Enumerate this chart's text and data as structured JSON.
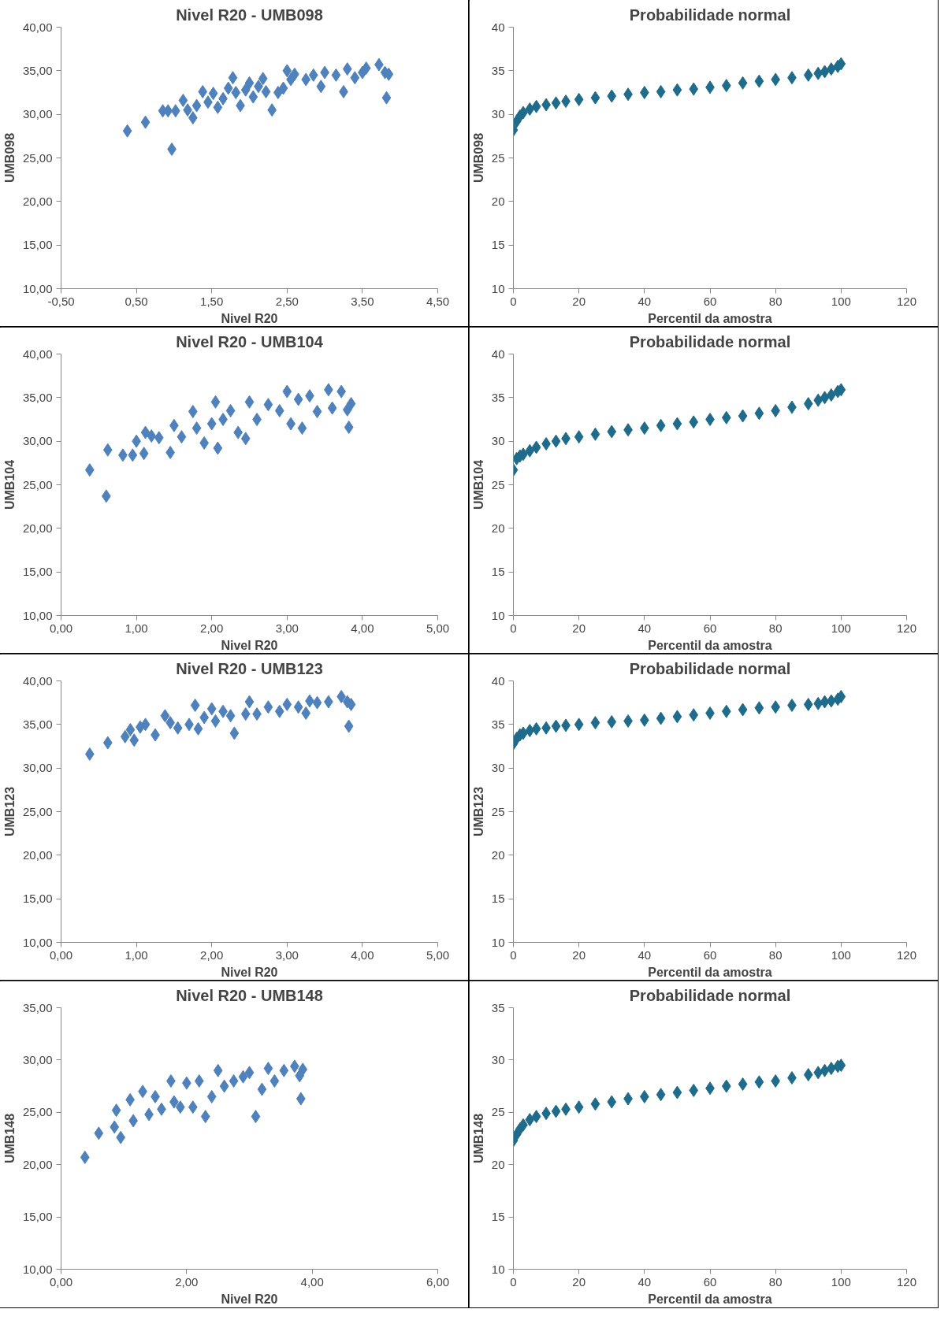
{
  "chart_data": [
    {
      "type": "scatter",
      "title": "Nivel R20 - UMB098",
      "xlabel": "Nivel R20",
      "ylabel": "UMB098",
      "color": "#4f81bd",
      "marker": "diamond",
      "x": [
        0.38,
        0.62,
        0.85,
        0.92,
        0.97,
        1.02,
        1.12,
        1.18,
        1.25,
        1.3,
        1.38,
        1.45,
        1.52,
        1.58,
        1.65,
        1.72,
        1.78,
        1.82,
        1.88,
        1.95,
        2.0,
        2.05,
        2.12,
        2.18,
        2.22,
        2.3,
        2.38,
        2.45,
        2.5,
        2.55,
        2.6,
        2.75,
        2.85,
        2.95,
        3.0,
        3.15,
        3.25,
        3.3,
        3.4,
        3.5,
        3.55,
        3.72,
        3.8,
        3.85,
        3.82
      ],
      "values": [
        28.1,
        29.1,
        30.4,
        30.4,
        26.0,
        30.4,
        31.6,
        30.5,
        29.6,
        31.0,
        32.6,
        31.4,
        32.4,
        30.8,
        31.8,
        33.0,
        34.2,
        32.5,
        31.0,
        32.8,
        33.6,
        32.0,
        33.2,
        34.1,
        32.6,
        30.5,
        32.5,
        33.0,
        35.0,
        34.0,
        34.6,
        34.0,
        34.5,
        33.2,
        34.8,
        34.5,
        32.6,
        35.2,
        34.2,
        34.8,
        35.3,
        35.7,
        34.8,
        34.6,
        31.9
      ],
      "xlim": [
        -0.5,
        4.5
      ],
      "ylim": [
        10,
        40
      ],
      "xticks": [
        {
          "value": -0.5,
          "label": "-0,50"
        },
        {
          "value": 0.5,
          "label": "0,50"
        },
        {
          "value": 1.5,
          "label": "1,50"
        },
        {
          "value": 2.5,
          "label": "2,50"
        },
        {
          "value": 3.5,
          "label": "3,50"
        },
        {
          "value": 4.5,
          "label": "4,50"
        }
      ],
      "yticks": [
        {
          "value": 10,
          "label": "10,00"
        },
        {
          "value": 15,
          "label": "15,00"
        },
        {
          "value": 20,
          "label": "20,00"
        },
        {
          "value": 25,
          "label": "25,00"
        },
        {
          "value": 30,
          "label": "30,00"
        },
        {
          "value": 35,
          "label": "35,00"
        },
        {
          "value": 40,
          "label": "40,00"
        }
      ]
    },
    {
      "type": "scatter",
      "title": "Probabilidade normal",
      "xlabel": "Percentil da amostra",
      "ylabel": "UMB098",
      "color": "#1f6b8c",
      "marker": "diamond",
      "x": [
        0,
        1,
        2,
        3,
        5,
        7,
        10,
        13,
        16,
        20,
        25,
        30,
        35,
        40,
        45,
        50,
        55,
        60,
        65,
        70,
        75,
        80,
        85,
        90,
        93,
        95,
        97,
        99,
        100
      ],
      "values": [
        28.2,
        29.2,
        29.8,
        30.2,
        30.6,
        30.9,
        31.1,
        31.3,
        31.5,
        31.7,
        31.9,
        32.1,
        32.3,
        32.5,
        32.6,
        32.8,
        32.9,
        33.1,
        33.3,
        33.6,
        33.8,
        34.0,
        34.2,
        34.5,
        34.7,
        34.9,
        35.2,
        35.5,
        35.8
      ],
      "xlim": [
        0,
        120
      ],
      "ylim": [
        10,
        40
      ],
      "xticks": [
        0,
        20,
        40,
        60,
        80,
        100,
        120
      ],
      "yticks": [
        10,
        15,
        20,
        25,
        30,
        35,
        40
      ]
    },
    {
      "type": "scatter",
      "title": "Nivel R20 - UMB104",
      "xlabel": "Nivel R20",
      "ylabel": "UMB104",
      "color": "#4f81bd",
      "marker": "diamond",
      "x": [
        0.38,
        0.6,
        0.62,
        0.82,
        0.95,
        1.0,
        1.1,
        1.12,
        1.2,
        1.3,
        1.45,
        1.5,
        1.6,
        1.75,
        1.8,
        1.9,
        2.0,
        2.05,
        2.08,
        2.15,
        2.25,
        2.35,
        2.45,
        2.5,
        2.6,
        2.75,
        2.9,
        3.0,
        3.05,
        3.15,
        3.2,
        3.3,
        3.4,
        3.55,
        3.6,
        3.72,
        3.8,
        3.85,
        3.82
      ],
      "values": [
        26.7,
        23.7,
        29.0,
        28.4,
        28.4,
        30.0,
        28.6,
        31.0,
        30.6,
        30.4,
        28.7,
        31.8,
        30.5,
        33.4,
        31.5,
        29.8,
        32.0,
        34.5,
        29.2,
        32.5,
        33.5,
        31.0,
        30.3,
        34.5,
        32.5,
        34.2,
        33.5,
        35.7,
        32.0,
        34.8,
        31.5,
        35.2,
        33.4,
        35.9,
        33.8,
        35.7,
        33.6,
        34.3,
        31.6
      ],
      "xlim": [
        0,
        5
      ],
      "ylim": [
        10,
        40
      ],
      "xticks": [
        {
          "value": 0,
          "label": "0,00"
        },
        {
          "value": 1,
          "label": "1,00"
        },
        {
          "value": 2,
          "label": "2,00"
        },
        {
          "value": 3,
          "label": "3,00"
        },
        {
          "value": 4,
          "label": "4,00"
        },
        {
          "value": 5,
          "label": "5,00"
        }
      ],
      "yticks": [
        {
          "value": 10,
          "label": "10,00"
        },
        {
          "value": 15,
          "label": "15,00"
        },
        {
          "value": 20,
          "label": "20,00"
        },
        {
          "value": 25,
          "label": "25,00"
        },
        {
          "value": 30,
          "label": "30,00"
        },
        {
          "value": 35,
          "label": "35,00"
        },
        {
          "value": 40,
          "label": "40,00"
        }
      ]
    },
    {
      "type": "scatter",
      "title": "Probabilidade normal",
      "xlabel": "Percentil da amostra",
      "ylabel": "UMB104",
      "color": "#1f6b8c",
      "marker": "diamond",
      "x": [
        0,
        1,
        2,
        3,
        5,
        7,
        10,
        13,
        16,
        20,
        25,
        30,
        35,
        40,
        45,
        50,
        55,
        60,
        65,
        70,
        75,
        80,
        85,
        90,
        93,
        95,
        97,
        99,
        100
      ],
      "values": [
        26.7,
        28.0,
        28.3,
        28.5,
        28.9,
        29.3,
        29.7,
        30.0,
        30.3,
        30.5,
        30.8,
        31.1,
        31.3,
        31.5,
        31.8,
        32.0,
        32.2,
        32.5,
        32.7,
        32.9,
        33.2,
        33.5,
        33.9,
        34.3,
        34.7,
        35.0,
        35.3,
        35.7,
        35.9
      ],
      "xlim": [
        0,
        120
      ],
      "ylim": [
        10,
        40
      ],
      "xticks": [
        0,
        20,
        40,
        60,
        80,
        100,
        120
      ],
      "yticks": [
        10,
        15,
        20,
        25,
        30,
        35,
        40
      ]
    },
    {
      "type": "scatter",
      "title": "Nivel R20 - UMB123",
      "xlabel": "Nivel R20",
      "ylabel": "UMB123",
      "color": "#4f81bd",
      "marker": "diamond",
      "x": [
        0.38,
        0.62,
        0.85,
        0.92,
        0.97,
        1.05,
        1.12,
        1.25,
        1.38,
        1.45,
        1.55,
        1.7,
        1.78,
        1.82,
        1.9,
        2.0,
        2.05,
        2.15,
        2.25,
        2.3,
        2.45,
        2.5,
        2.6,
        2.75,
        2.9,
        3.0,
        3.15,
        3.25,
        3.3,
        3.4,
        3.55,
        3.72,
        3.8,
        3.85,
        3.82
      ],
      "values": [
        31.6,
        32.9,
        33.6,
        34.4,
        33.2,
        34.7,
        35.0,
        33.8,
        36.0,
        35.2,
        34.6,
        35.0,
        37.2,
        34.5,
        35.8,
        36.8,
        35.4,
        36.5,
        36.0,
        34.0,
        36.2,
        37.6,
        36.2,
        37.0,
        36.5,
        37.3,
        37.0,
        36.3,
        37.7,
        37.5,
        37.6,
        38.2,
        37.6,
        37.3,
        34.8
      ],
      "xlim": [
        0,
        5
      ],
      "ylim": [
        10,
        40
      ],
      "xticks": [
        {
          "value": 0,
          "label": "0,00"
        },
        {
          "value": 1,
          "label": "1,00"
        },
        {
          "value": 2,
          "label": "2,00"
        },
        {
          "value": 3,
          "label": "3,00"
        },
        {
          "value": 4,
          "label": "4,00"
        },
        {
          "value": 5,
          "label": "5,00"
        }
      ],
      "yticks": [
        {
          "value": 10,
          "label": "10,00"
        },
        {
          "value": 15,
          "label": "15,00"
        },
        {
          "value": 20,
          "label": "20,00"
        },
        {
          "value": 25,
          "label": "25,00"
        },
        {
          "value": 30,
          "label": "30,00"
        },
        {
          "value": 35,
          "label": "35,00"
        },
        {
          "value": 40,
          "label": "40,00"
        }
      ]
    },
    {
      "type": "scatter",
      "title": "Probabilidade normal",
      "xlabel": "Percentil da amostra",
      "ylabel": "UMB123",
      "color": "#1f6b8c",
      "marker": "diamond",
      "x": [
        0,
        1,
        2,
        3,
        5,
        7,
        10,
        13,
        16,
        20,
        25,
        30,
        35,
        40,
        45,
        50,
        55,
        60,
        65,
        70,
        75,
        80,
        85,
        90,
        93,
        95,
        97,
        99,
        100
      ],
      "values": [
        32.8,
        33.4,
        33.8,
        34.0,
        34.3,
        34.5,
        34.6,
        34.8,
        34.9,
        35.0,
        35.2,
        35.3,
        35.4,
        35.5,
        35.7,
        35.9,
        36.1,
        36.3,
        36.5,
        36.7,
        36.9,
        37.0,
        37.2,
        37.3,
        37.4,
        37.6,
        37.7,
        37.9,
        38.2
      ],
      "xlim": [
        0,
        120
      ],
      "ylim": [
        10,
        40
      ],
      "xticks": [
        0,
        20,
        40,
        60,
        80,
        100,
        120
      ],
      "yticks": [
        10,
        15,
        20,
        25,
        30,
        35,
        40
      ]
    },
    {
      "type": "scatter",
      "title": "Nivel R20 - UMB148",
      "xlabel": "Nivel R20",
      "ylabel": "UMB148",
      "color": "#4f81bd",
      "marker": "diamond",
      "x": [
        0.38,
        0.6,
        0.85,
        0.88,
        0.95,
        1.1,
        1.15,
        1.3,
        1.4,
        1.5,
        1.6,
        1.75,
        1.8,
        1.9,
        2.0,
        2.1,
        2.2,
        2.3,
        2.4,
        2.5,
        2.6,
        2.75,
        2.9,
        3.0,
        3.1,
        3.2,
        3.3,
        3.4,
        3.55,
        3.72,
        3.8,
        3.85,
        3.82
      ],
      "values": [
        20.7,
        23.0,
        23.6,
        25.2,
        22.6,
        26.2,
        24.2,
        27.0,
        24.8,
        26.5,
        25.3,
        28.0,
        26.0,
        25.5,
        27.8,
        25.5,
        28.0,
        24.6,
        26.5,
        29.0,
        27.5,
        28.0,
        28.4,
        28.8,
        24.6,
        27.2,
        29.2,
        28.0,
        29.0,
        29.4,
        28.5,
        29.1,
        26.3
      ],
      "xlim": [
        0,
        6
      ],
      "ylim": [
        10,
        35
      ],
      "xticks": [
        {
          "value": 0,
          "label": "0,00"
        },
        {
          "value": 2,
          "label": "2,00"
        },
        {
          "value": 4,
          "label": "4,00"
        },
        {
          "value": 6,
          "label": "6,00"
        }
      ],
      "yticks": [
        {
          "value": 10,
          "label": "10,00"
        },
        {
          "value": 15,
          "label": "15,00"
        },
        {
          "value": 20,
          "label": "20,00"
        },
        {
          "value": 25,
          "label": "25,00"
        },
        {
          "value": 30,
          "label": "30,00"
        },
        {
          "value": 35,
          "label": "35,00"
        }
      ]
    },
    {
      "type": "scatter",
      "title": "Probabilidade normal",
      "xlabel": "Percentil da amostra",
      "ylabel": "UMB148",
      "color": "#1f6b8c",
      "marker": "diamond",
      "x": [
        0,
        1,
        2,
        3,
        5,
        7,
        10,
        13,
        16,
        20,
        25,
        30,
        35,
        40,
        45,
        50,
        55,
        60,
        65,
        70,
        75,
        80,
        85,
        90,
        93,
        95,
        97,
        99,
        100
      ],
      "values": [
        22.3,
        22.9,
        23.4,
        23.8,
        24.3,
        24.6,
        24.9,
        25.1,
        25.3,
        25.5,
        25.8,
        26.0,
        26.3,
        26.5,
        26.7,
        26.9,
        27.1,
        27.3,
        27.5,
        27.7,
        27.9,
        28.0,
        28.3,
        28.6,
        28.8,
        29.0,
        29.2,
        29.4,
        29.5
      ],
      "xlim": [
        0,
        120
      ],
      "ylim": [
        10,
        35
      ],
      "xticks": [
        0,
        20,
        40,
        60,
        80,
        100,
        120
      ],
      "yticks": [
        10,
        15,
        20,
        25,
        30,
        35
      ]
    }
  ]
}
